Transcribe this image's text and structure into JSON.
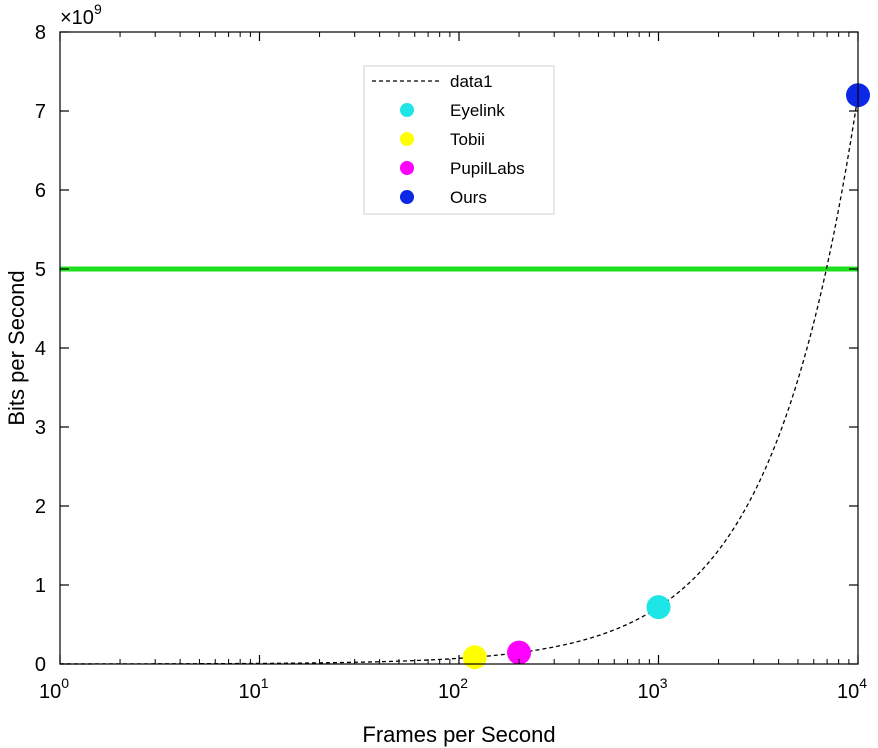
{
  "chart_data": {
    "type": "scatter",
    "xlabel": "Frames per Second",
    "ylabel": "Bits per Second",
    "y_exponent_label": "×10",
    "y_exponent_power": "9",
    "x_scale": "log",
    "xlim": [
      1,
      10000
    ],
    "ylim": [
      0,
      8000000000
    ],
    "x_ticks": [
      {
        "value": 1,
        "base": "10",
        "power": "0"
      },
      {
        "value": 10,
        "base": "10",
        "power": "1"
      },
      {
        "value": 100,
        "base": "10",
        "power": "2"
      },
      {
        "value": 1000,
        "base": "10",
        "power": "3"
      },
      {
        "value": 10000,
        "base": "10",
        "power": "4"
      }
    ],
    "y_ticks": [
      {
        "value": 0,
        "label": "0"
      },
      {
        "value": 1000000000,
        "label": "1"
      },
      {
        "value": 2000000000,
        "label": "2"
      },
      {
        "value": 3000000000,
        "label": "3"
      },
      {
        "value": 4000000000,
        "label": "4"
      },
      {
        "value": 5000000000,
        "label": "5"
      },
      {
        "value": 6000000000,
        "label": "6"
      },
      {
        "value": 7000000000,
        "label": "7"
      },
      {
        "value": 8000000000,
        "label": "8"
      }
    ],
    "grid": false,
    "legend_position": "top-center",
    "reference_line": {
      "y": 5000000000,
      "color": "#1fe01f"
    },
    "curve": {
      "name": "data1",
      "style": "dashed",
      "color": "#000000",
      "x": [
        1,
        2,
        5,
        10,
        20,
        50,
        100,
        200,
        500,
        1000,
        2000,
        5000,
        10000
      ],
      "y": [
        720000,
        1440000,
        3600000,
        7200000,
        14400000,
        36000000,
        72000000,
        144000000,
        360000000,
        720000000,
        1440000000,
        3600000000,
        7200000000
      ]
    },
    "series": [
      {
        "name": "Eyelink",
        "color": "#1ee6e6",
        "x": [
          1000
        ],
        "y": [
          720000000
        ]
      },
      {
        "name": "Tobii",
        "color": "#ffff00",
        "x": [
          120
        ],
        "y": [
          86000000
        ]
      },
      {
        "name": "PupilLabs",
        "color": "#ff00ff",
        "x": [
          200
        ],
        "y": [
          144000000
        ]
      },
      {
        "name": "Ours",
        "color": "#0a28e6",
        "x": [
          10000
        ],
        "y": [
          7200000000
        ]
      }
    ]
  }
}
